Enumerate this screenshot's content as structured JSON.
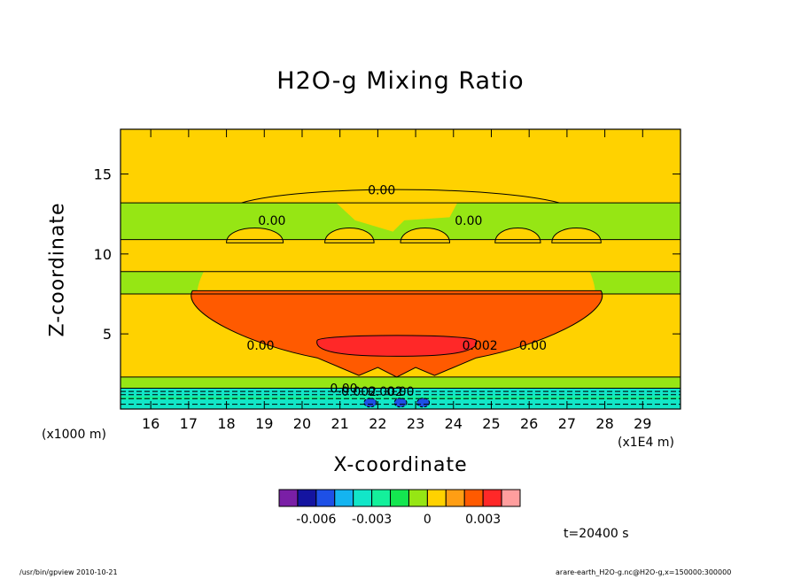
{
  "chart_data": {
    "type": "heatmap",
    "title": "H2O-g Mixing Ratio",
    "xlabel": "X-coordinate",
    "ylabel": "Z-coordinate",
    "x_unit": "(x1E4 m)",
    "y_unit": "(x1000 m)",
    "xlim": [
      15.2,
      30.0
    ],
    "ylim": [
      0.3,
      17.8
    ],
    "x_ticks": [
      "16",
      "17",
      "18",
      "19",
      "20",
      "21",
      "22",
      "23",
      "24",
      "25",
      "26",
      "27",
      "28",
      "29"
    ],
    "y_ticks": [
      "5",
      "10",
      "15"
    ],
    "contour_labels": [
      "0.00",
      "0.00",
      "0.00",
      "0.00",
      "0.002",
      "0.00",
      "0.00",
      "0.002",
      "0.00",
      "0.002"
    ],
    "colorbar": {
      "colors": [
        "#7a1fa6",
        "#1414a0",
        "#1e50e6",
        "#14b4f0",
        "#12e6c8",
        "#14f09b",
        "#14e650",
        "#96e614",
        "#ffd200",
        "#ff9e14",
        "#ff5a00",
        "#ff2828",
        "#ff9e9e"
      ],
      "tick_labels": [
        "-0.006",
        "-0.003",
        "0",
        "0.003"
      ]
    },
    "regions": [
      {
        "level": "background",
        "color": "#ffd200"
      },
      {
        "level": "upper_band",
        "color": "#96e614",
        "z": [
          10.9,
          13.2
        ]
      },
      {
        "level": "mid_band",
        "color": "#96e614",
        "z": [
          7.5,
          8.9
        ]
      },
      {
        "level": "lower_band",
        "color": "#96e614",
        "z": [
          1.6,
          2.3
        ]
      },
      {
        "level": "plume_outer",
        "color": "#ff5a00",
        "x": [
          17.0,
          28.0
        ],
        "z": [
          3.0,
          7.7
        ]
      },
      {
        "level": "plume_core",
        "color": "#ff2828",
        "x": [
          20.3,
          24.8
        ],
        "z": [
          3.6,
          4.8
        ]
      },
      {
        "level": "surface_layer",
        "color": "#12e6c8",
        "z": [
          0.3,
          1.6
        ]
      }
    ]
  },
  "annotations": {
    "time": "t=20400 s",
    "footer_left": "/usr/bin/gpview   2010-10-21",
    "footer_right": "arare-earth_H2O-g.nc@H2O-g,x=150000:300000"
  }
}
